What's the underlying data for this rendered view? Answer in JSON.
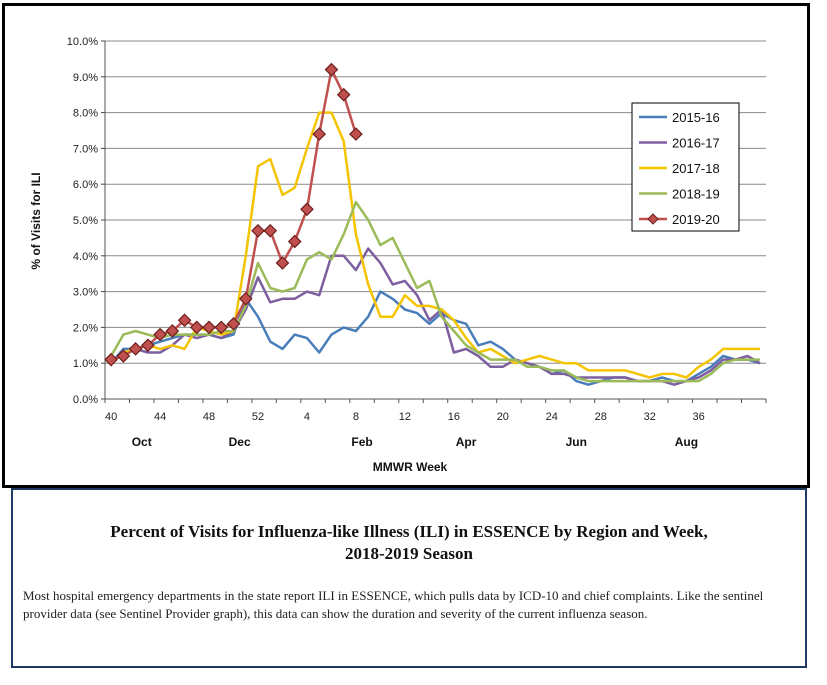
{
  "chart_data": {
    "type": "line",
    "title": "",
    "xlabel": "MMWR Week",
    "ylabel": "% of Visits for ILI",
    "ylim": [
      0,
      10
    ],
    "y_ticks": [
      "0.0%",
      "1.0%",
      "2.0%",
      "3.0%",
      "4.0%",
      "5.0%",
      "6.0%",
      "7.0%",
      "8.0%",
      "9.0%",
      "10.0%"
    ],
    "x_ticks": [
      "40",
      "44",
      "48",
      "52",
      "4",
      "8",
      "12",
      "16",
      "20",
      "24",
      "28",
      "32",
      "36"
    ],
    "months": [
      "Oct",
      "Dec",
      "Feb",
      "Apr",
      "Jun",
      "Aug"
    ],
    "grid": "horizontal",
    "legend_position": "right",
    "series": [
      {
        "name": "2015-16",
        "color": "#4a7ebb",
        "values": [
          1.0,
          1.4,
          1.4,
          1.5,
          1.6,
          1.7,
          1.8,
          1.8,
          1.8,
          1.7,
          1.8,
          2.8,
          2.3,
          1.6,
          1.4,
          1.8,
          1.7,
          1.3,
          1.8,
          2.0,
          1.9,
          2.3,
          3.0,
          2.8,
          2.5,
          2.4,
          2.1,
          2.4,
          2.2,
          2.1,
          1.5,
          1.6,
          1.4,
          1.1,
          1.0,
          0.9,
          0.7,
          0.8,
          0.5,
          0.4,
          0.5,
          0.6,
          0.6,
          0.5,
          0.5,
          0.6,
          0.5,
          0.5,
          0.7,
          0.9,
          1.2,
          1.1,
          1.1,
          1.0
        ]
      },
      {
        "name": "2016-17",
        "color": "#7d5fa0",
        "values": [
          1.0,
          1.3,
          1.4,
          1.3,
          1.3,
          1.5,
          1.8,
          1.7,
          1.8,
          1.7,
          1.9,
          2.5,
          3.4,
          2.7,
          2.8,
          2.8,
          3.0,
          2.9,
          4.0,
          4.0,
          3.6,
          4.2,
          3.8,
          3.2,
          3.3,
          2.9,
          2.2,
          2.5,
          1.3,
          1.4,
          1.2,
          0.9,
          0.9,
          1.1,
          1.0,
          0.9,
          0.7,
          0.7,
          0.6,
          0.6,
          0.6,
          0.6,
          0.6,
          0.5,
          0.5,
          0.5,
          0.4,
          0.5,
          0.6,
          0.8,
          1.1,
          1.1,
          1.2,
          1.0
        ]
      },
      {
        "name": "2017-18",
        "color": "#f5c400",
        "values": [
          1.0,
          1.3,
          1.4,
          1.5,
          1.4,
          1.5,
          1.4,
          2.0,
          1.9,
          1.8,
          1.9,
          4.0,
          6.5,
          6.7,
          5.7,
          5.9,
          7.0,
          8.0,
          8.0,
          7.2,
          4.6,
          3.2,
          2.3,
          2.3,
          2.9,
          2.6,
          2.6,
          2.5,
          2.2,
          1.7,
          1.3,
          1.4,
          1.2,
          1.0,
          1.1,
          1.2,
          1.1,
          1.0,
          1.0,
          0.8,
          0.8,
          0.8,
          0.8,
          0.7,
          0.6,
          0.7,
          0.7,
          0.6,
          0.9,
          1.1,
          1.4,
          1.4,
          1.4,
          1.4
        ]
      },
      {
        "name": "2018-19",
        "color": "#9bbb59",
        "values": [
          1.2,
          1.8,
          1.9,
          1.8,
          1.7,
          1.8,
          1.8,
          1.8,
          1.8,
          1.9,
          1.9,
          2.6,
          3.8,
          3.1,
          3.0,
          3.1,
          3.9,
          4.1,
          3.9,
          4.6,
          5.5,
          5.0,
          4.3,
          4.5,
          3.8,
          3.1,
          3.3,
          2.3,
          1.9,
          1.5,
          1.3,
          1.1,
          1.1,
          1.1,
          0.9,
          0.9,
          0.8,
          0.8,
          0.6,
          0.5,
          0.5,
          0.5,
          0.5,
          0.5,
          0.5,
          0.5,
          0.5,
          0.5,
          0.5,
          0.7,
          1.0,
          1.1,
          1.1,
          1.1
        ]
      },
      {
        "name": "2019-20",
        "color": "#c0504d",
        "marker": "diamond",
        "values": [
          1.1,
          1.2,
          1.4,
          1.5,
          1.8,
          1.9,
          2.2,
          2.0,
          2.0,
          2.0,
          2.1,
          2.8,
          4.7,
          4.7,
          3.8,
          4.4,
          5.3,
          7.4,
          9.2,
          8.5,
          7.4
        ]
      }
    ]
  },
  "caption": {
    "title_line1": "Percent of Visits for Influenza-like Illness (ILI) in ESSENCE by Region and Week,",
    "title_line2": "2018-2019 Season",
    "body": "Most hospital emergency departments in the state report ILI in ESSENCE, which pulls data by ICD-10 and chief complaints. Like the sentinel provider data (see Sentinel Provider graph), this data can show the duration and severity of  the current influenza season."
  }
}
